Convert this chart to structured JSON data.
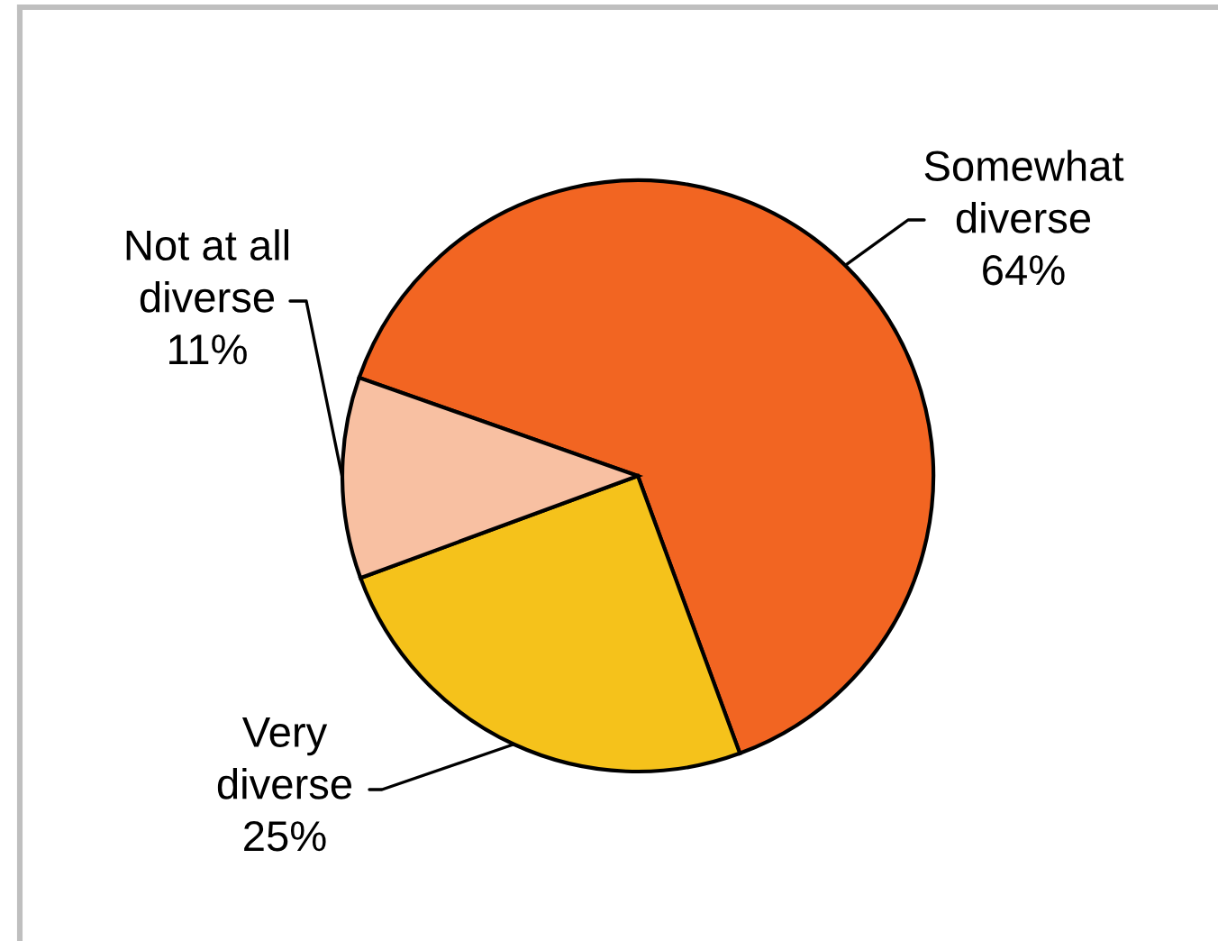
{
  "chart_data": {
    "type": "pie",
    "categories": [
      "Somewhat diverse",
      "Very diverse",
      "Not at all diverse"
    ],
    "values": [
      64,
      25,
      11
    ],
    "colors": [
      "#f26522",
      "#f5c21b",
      "#f8c0a2"
    ],
    "value_labels": [
      "64%",
      "25%",
      "11%"
    ]
  }
}
